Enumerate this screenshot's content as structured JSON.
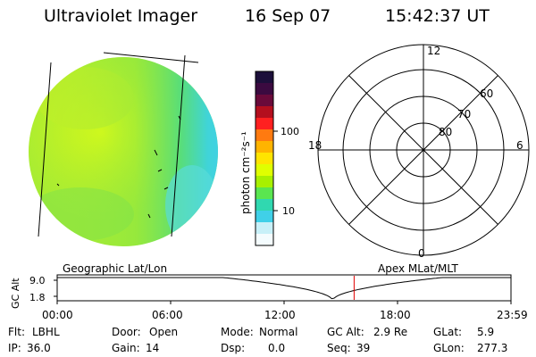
{
  "header": {
    "instrument": "Ultraviolet Imager",
    "date": "16 Sep 07",
    "time": "15:42:37 UT"
  },
  "colorbar": {
    "unit_label": "photon cm⁻²s⁻¹",
    "ticks": [
      "100",
      "10"
    ],
    "colors": [
      "#1c0f3a",
      "#3b0a40",
      "#6a0a3a",
      "#b40f1e",
      "#ff2020",
      "#ff7a10",
      "#ffb400",
      "#ffe400",
      "#e0ff00",
      "#a8f000",
      "#5ae650",
      "#30d8b0",
      "#40d0e8",
      "#c8f0f8",
      "#f4fcfe"
    ]
  },
  "polar": {
    "mlt_labels": [
      "12",
      "18",
      "6",
      "0"
    ],
    "lat_labels": [
      "60",
      "70",
      "80"
    ]
  },
  "timeline": {
    "left_title": "Geographic Lat/Lon",
    "right_title": "Apex MLat/MLT",
    "axis_label": "GC Alt",
    "y_ticks": [
      "9.0",
      "1.8"
    ],
    "x_ticks": [
      "00:00",
      "06:00",
      "12:00",
      "18:00",
      "23:59"
    ],
    "current_time_fraction": 0.6543
  },
  "status": {
    "row1": [
      {
        "label": "Flt:",
        "value": "LBHL"
      },
      {
        "label": "Door:",
        "value": "Open"
      },
      {
        "label": "Mode:",
        "value": "Normal"
      },
      {
        "label": "GC Alt:",
        "value": "2.9 Re"
      },
      {
        "label": "GLat:",
        "value": "5.9"
      }
    ],
    "row2": [
      {
        "label": "IP:",
        "value": "36.0"
      },
      {
        "label": "Gain:",
        "value": "14"
      },
      {
        "label": "Dsp:",
        "value": "0.0"
      },
      {
        "label": "Seq:",
        "value": "39"
      },
      {
        "label": "GLon:",
        "value": "277.3"
      }
    ]
  }
}
